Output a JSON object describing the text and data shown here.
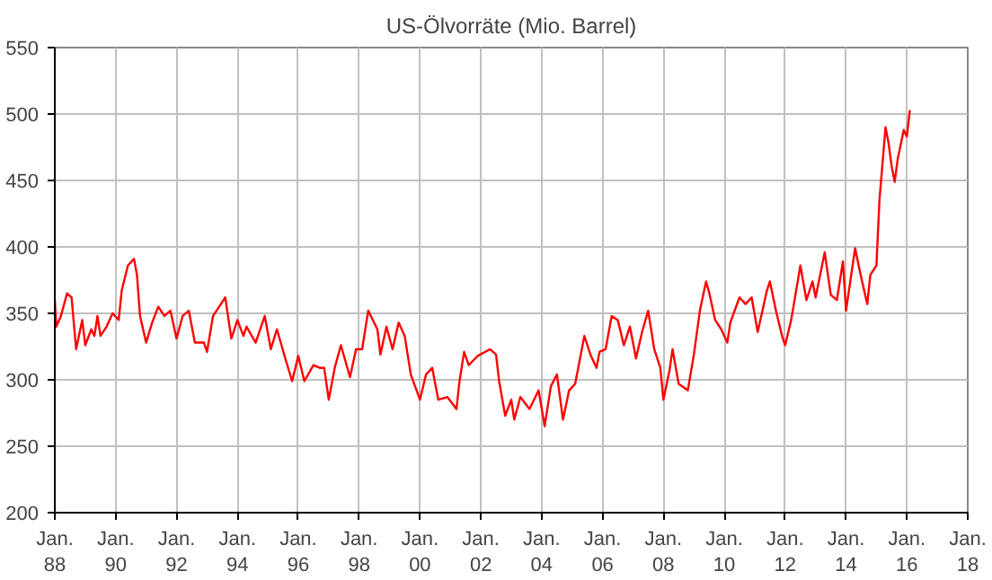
{
  "chart_data": {
    "type": "line",
    "title": "US-Ölvorräte (Mio. Barrel)",
    "x": [
      "1988-01-01",
      "1988-01-19",
      "1988-03-14",
      "1988-05-27",
      "1988-07-20",
      "1988-09-13",
      "1988-11-25",
      "1989-01-01",
      "1989-03-14",
      "1989-04-20",
      "1989-05-27",
      "1989-07-02",
      "1989-09-13",
      "1989-11-25",
      "1990-02-06",
      "1990-03-14",
      "1990-05-27",
      "1990-08-08",
      "1990-09-13",
      "1990-10-20",
      "1991-01-01",
      "1991-03-14",
      "1991-05-27",
      "1991-08-08",
      "1991-10-20",
      "1992-01-01",
      "1992-03-14",
      "1992-05-27",
      "1992-08-08",
      "1992-11-25",
      "1993-01-01",
      "1993-03-14",
      "1993-05-27",
      "1993-08-08",
      "1993-10-20",
      "1994-01-01",
      "1994-03-14",
      "1994-04-20",
      "1994-08-08",
      "1994-11-25",
      "1995-02-06",
      "1995-04-20",
      "1995-08-08",
      "1995-10-20",
      "1996-01-01",
      "1996-03-14",
      "1996-07-02",
      "1996-09-13",
      "1996-11-07",
      "1997-01-01",
      "1997-03-14",
      "1997-05-27",
      "1997-09-13",
      "1997-11-25",
      "1998-02-06",
      "1998-04-20",
      "1998-08-08",
      "1998-09-13",
      "1998-11-25",
      "1999-02-06",
      "1999-04-20",
      "1999-07-02",
      "1999-09-13",
      "2000-01-01",
      "2000-03-14",
      "2000-05-27",
      "2000-08-08",
      "2000-11-25",
      "2001-03-14",
      "2001-04-20",
      "2001-06-14",
      "2001-08-08",
      "2001-11-25",
      "2002-04-20",
      "2002-07-02",
      "2002-08-08",
      "2002-10-20",
      "2003-01-01",
      "2003-02-06",
      "2003-04-20",
      "2003-08-08",
      "2003-11-25",
      "2004-02-06",
      "2004-04-20",
      "2004-07-02",
      "2004-09-13",
      "2004-11-25",
      "2005-02-06",
      "2005-05-27",
      "2005-08-08",
      "2005-10-20",
      "2005-11-25",
      "2006-02-06",
      "2006-04-20",
      "2006-07-02",
      "2006-09-13",
      "2006-11-25",
      "2007-02-06",
      "2007-04-20",
      "2007-07-02",
      "2007-09-13",
      "2007-11-25",
      "2008-01-01",
      "2008-03-14",
      "2008-04-20",
      "2008-07-02",
      "2008-10-20",
      "2009-01-01",
      "2009-03-14",
      "2009-05-27",
      "2009-07-02",
      "2009-09-13",
      "2009-11-25",
      "2010-02-06",
      "2010-03-14",
      "2010-07-02",
      "2010-09-13",
      "2010-11-25",
      "2011-02-06",
      "2011-05-27",
      "2011-07-02",
      "2011-09-13",
      "2011-11-25",
      "2012-01-01",
      "2012-03-14",
      "2012-07-02",
      "2012-09-13",
      "2012-11-25",
      "2013-01-01",
      "2013-04-20",
      "2013-07-02",
      "2013-09-13",
      "2013-11-25",
      "2014-01-01",
      "2014-04-20",
      "2014-07-02",
      "2014-09-13",
      "2014-10-20",
      "2015-01-01",
      "2015-02-06",
      "2015-04-20",
      "2015-05-27",
      "2015-07-02",
      "2015-08-08",
      "2015-09-13",
      "2015-11-25",
      "2016-01-01",
      "2016-02-06"
    ],
    "series": [
      {
        "color": "#ff0000",
        "values": [
          360,
          340,
          348,
          365,
          362,
          323,
          345,
          326,
          338,
          333,
          348,
          333,
          340,
          350,
          345,
          367,
          386,
          391,
          379,
          348,
          328,
          343,
          355,
          348,
          352,
          331,
          348,
          352,
          328,
          328,
          321,
          348,
          355,
          362,
          331,
          345,
          333,
          340,
          328,
          348,
          323,
          338,
          314,
          299,
          318,
          299,
          311,
          309,
          309,
          285,
          309,
          326,
          302,
          323,
          323,
          352,
          338,
          319,
          340,
          323,
          343,
          333,
          304,
          285,
          304,
          309,
          285,
          287,
          278,
          299,
          321,
          311,
          318,
          323,
          319,
          299,
          273,
          285,
          270,
          287,
          278,
          292,
          265,
          295,
          304,
          270,
          292,
          297,
          333,
          319,
          309,
          321,
          323,
          348,
          345,
          326,
          340,
          316,
          336,
          352,
          323,
          309,
          285,
          307,
          323,
          297,
          292,
          319,
          352,
          374,
          366,
          345,
          338,
          328,
          343,
          362,
          357,
          362,
          336,
          367,
          374,
          352,
          333,
          326,
          345,
          386,
          360,
          374,
          362,
          396,
          364,
          360,
          389,
          352,
          399,
          377,
          357,
          379,
          386,
          435,
          490,
          478,
          461,
          449,
          466,
          488,
          483,
          503
        ]
      }
    ],
    "xlim": [
      "1988-01-01",
      "2018-01-01"
    ],
    "xticks": [
      {
        "value": "1988-01-01",
        "label": "Jan.\n88"
      },
      {
        "value": "1990-01-01",
        "label": "Jan.\n90"
      },
      {
        "value": "1992-01-01",
        "label": "Jan.\n92"
      },
      {
        "value": "1994-01-01",
        "label": "Jan.\n94"
      },
      {
        "value": "1996-01-01",
        "label": "Jan.\n96"
      },
      {
        "value": "1998-01-01",
        "label": "Jan.\n98"
      },
      {
        "value": "2000-01-01",
        "label": "Jan.\n00"
      },
      {
        "value": "2002-01-01",
        "label": "Jan.\n02"
      },
      {
        "value": "2004-01-01",
        "label": "Jan.\n04"
      },
      {
        "value": "2006-01-01",
        "label": "Jan.\n06"
      },
      {
        "value": "2008-01-01",
        "label": "Jan.\n08"
      },
      {
        "value": "2010-01-01",
        "label": "Jan.\n10"
      },
      {
        "value": "2012-01-01",
        "label": "Jan.\n12"
      },
      {
        "value": "2014-01-01",
        "label": "Jan.\n14"
      },
      {
        "value": "2016-01-01",
        "label": "Jan.\n16"
      },
      {
        "value": "2018-01-01",
        "label": "Jan.\n18"
      }
    ],
    "ylim": [
      200,
      550
    ],
    "yticks": [
      200,
      250,
      300,
      350,
      400,
      450,
      500,
      550
    ],
    "grid": true,
    "marker": "none",
    "line_style": "solid"
  }
}
